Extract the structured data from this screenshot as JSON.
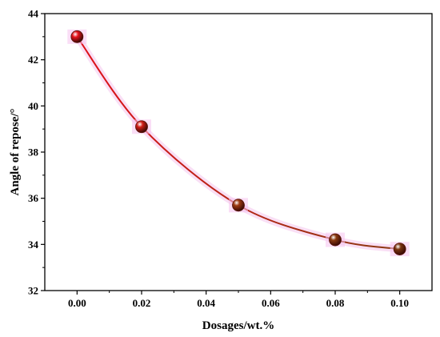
{
  "chart_data": {
    "type": "line",
    "title": "",
    "xlabel": "Dosages/wt.%",
    "ylabel": "Angle of repose/°",
    "xlim": [
      -0.01,
      0.11
    ],
    "ylim": [
      32,
      44
    ],
    "x_ticks": [
      0.0,
      0.02,
      0.04,
      0.06,
      0.08,
      0.1
    ],
    "x_tick_labels": [
      "0.00",
      "0.02",
      "0.04",
      "0.06",
      "0.08",
      "0.10"
    ],
    "y_ticks": [
      32,
      34,
      36,
      38,
      40,
      42,
      44
    ],
    "y_tick_labels": [
      "32",
      "34",
      "36",
      "38",
      "40",
      "42",
      "44"
    ],
    "grid": false,
    "legend": "none",
    "series": [
      {
        "x": [
          0.0,
          0.02,
          0.05,
          0.08,
          0.1
        ],
        "y": [
          43.0,
          39.1,
          35.7,
          34.2,
          33.8
        ],
        "marker_colors": [
          "#e8141c",
          "#d11d18",
          "#9e3b12",
          "#8a3a10",
          "#7a3510"
        ],
        "line_color_start": "#e0101a",
        "line_color_end": "#8a3a12"
      }
    ]
  }
}
